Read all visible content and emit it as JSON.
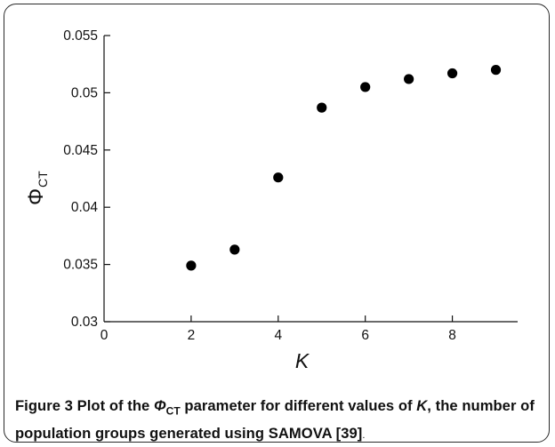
{
  "figure": {
    "caption_label": "Figure 3",
    "caption_pre": "Plot of the ",
    "caption_symbol": "Φ",
    "caption_symbol_sub": "CT",
    "caption_mid": " parameter for different values of ",
    "caption_var": "K",
    "caption_post": ", the number of population groups generated using SAMOVA [39]",
    "caption_end": "."
  },
  "chart_data": {
    "type": "scatter",
    "title": "",
    "xlabel": "K",
    "ylabel_symbol": "Φ",
    "ylabel_sub": "CT",
    "xlim": [
      0,
      9.5
    ],
    "ylim": [
      0.03,
      0.055
    ],
    "x_ticks": [
      0,
      2,
      4,
      6,
      8
    ],
    "x_tick_labels": [
      "0",
      "2",
      "4",
      "6",
      "8"
    ],
    "y_ticks": [
      0.03,
      0.035,
      0.04,
      0.045,
      0.05,
      0.055
    ],
    "y_tick_labels": [
      "0.03",
      "0.035",
      "0.04",
      "0.045",
      "0.05",
      "0.055"
    ],
    "grid": false,
    "legend": "none",
    "marker_color": "#000000",
    "points": [
      {
        "x": 2,
        "y": 0.0349
      },
      {
        "x": 3,
        "y": 0.0363
      },
      {
        "x": 4,
        "y": 0.0426
      },
      {
        "x": 5,
        "y": 0.0487
      },
      {
        "x": 6,
        "y": 0.0505
      },
      {
        "x": 7,
        "y": 0.0512
      },
      {
        "x": 8,
        "y": 0.0517
      },
      {
        "x": 9,
        "y": 0.052
      }
    ]
  }
}
